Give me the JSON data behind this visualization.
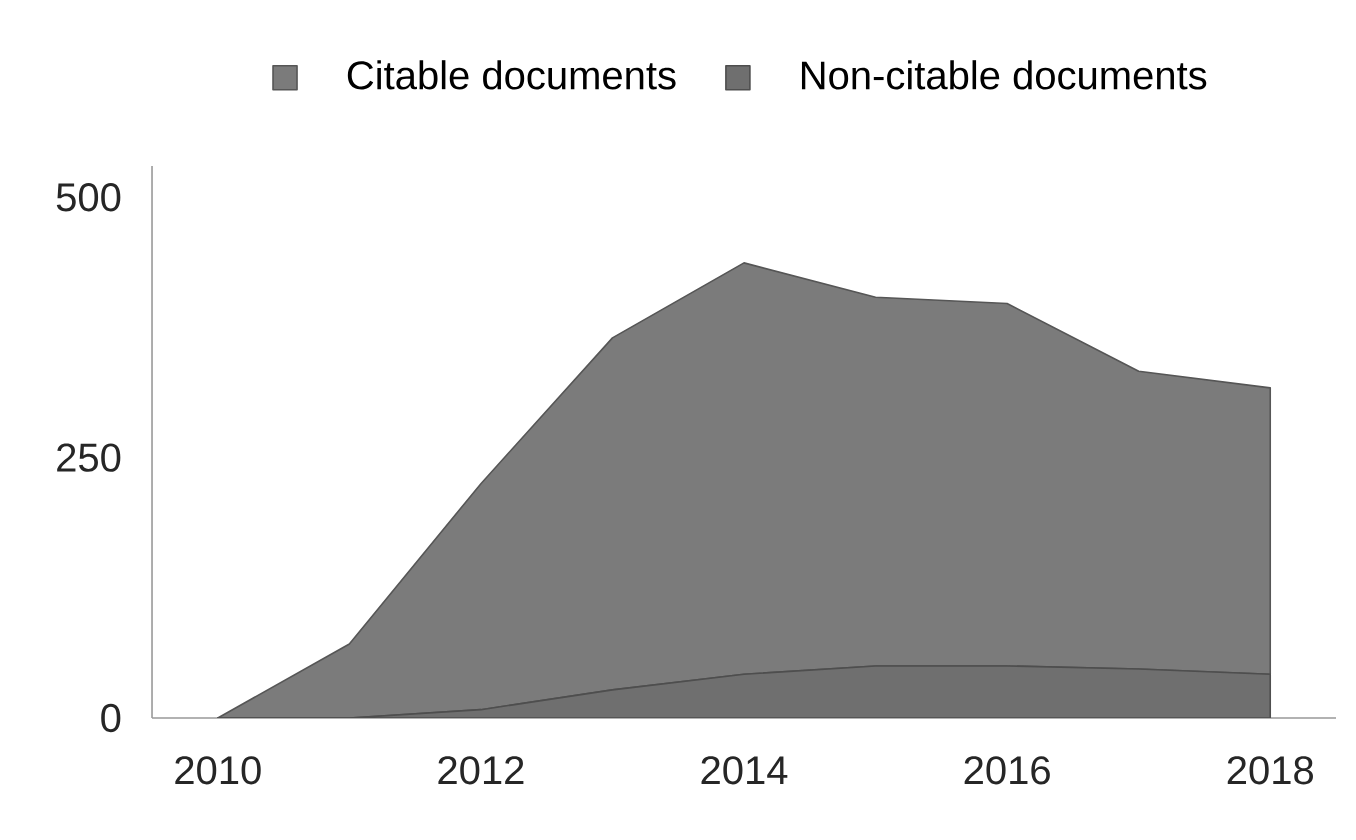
{
  "chart_data": {
    "type": "area",
    "stacked": true,
    "x": [
      2010,
      2011,
      2012,
      2013,
      2014,
      2015,
      2016,
      2017,
      2018
    ],
    "series": [
      {
        "name": "Non-citable documents",
        "color": "#6f6f6f",
        "values": [
          0,
          0,
          8,
          27,
          42,
          50,
          50,
          47,
          42
        ]
      },
      {
        "name": "Citable documents",
        "color": "#7b7b7b",
        "values": [
          0,
          71,
          217,
          338,
          395,
          354,
          348,
          286,
          275
        ]
      }
    ],
    "xlim": [
      2009.5,
      2018.5
    ],
    "ylim": [
      0,
      530
    ],
    "xticks": [
      2010,
      2012,
      2014,
      2016,
      2018
    ],
    "yticks": [
      0,
      250,
      500
    ],
    "legend": "top"
  }
}
